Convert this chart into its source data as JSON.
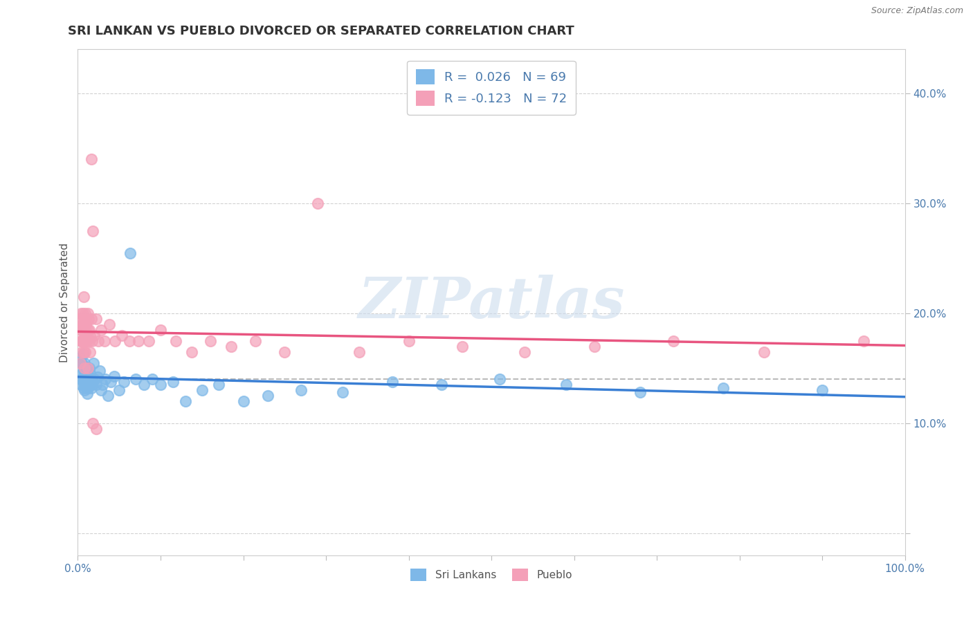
{
  "title": "SRI LANKAN VS PUEBLO DIVORCED OR SEPARATED CORRELATION CHART",
  "source_text": "Source: ZipAtlas.com",
  "ylabel": "Divorced or Separated",
  "xlim": [
    0.0,
    1.0
  ],
  "ylim": [
    -0.02,
    0.44
  ],
  "xticks": [
    0.0,
    0.1,
    0.2,
    0.3,
    0.4,
    0.5,
    0.6,
    0.7,
    0.8,
    0.9,
    1.0
  ],
  "yticks": [
    0.0,
    0.1,
    0.2,
    0.3,
    0.4
  ],
  "sri_color": "#7eb8e8",
  "pueblo_color": "#f4a0b8",
  "trend_sri_color": "#3a7fd4",
  "trend_pueblo_color": "#e85580",
  "background_color": "#ffffff",
  "grid_color": "#cccccc",
  "watermark_text": "ZIPatlas",
  "title_fontsize": 13,
  "axis_label_fontsize": 11,
  "tick_fontsize": 11,
  "legend_fontsize": 13,
  "sri_lankans_x": [
    0.004,
    0.005,
    0.005,
    0.006,
    0.006,
    0.007,
    0.007,
    0.008,
    0.008,
    0.009,
    0.009,
    0.01,
    0.01,
    0.011,
    0.011,
    0.012,
    0.012,
    0.013,
    0.013,
    0.014,
    0.014,
    0.015,
    0.015,
    0.016,
    0.016,
    0.017,
    0.018,
    0.019,
    0.02,
    0.022,
    0.024,
    0.026,
    0.028,
    0.03,
    0.033,
    0.036,
    0.04,
    0.044,
    0.05,
    0.056,
    0.063,
    0.07,
    0.08,
    0.09,
    0.1,
    0.115,
    0.13,
    0.15,
    0.17,
    0.2,
    0.23,
    0.27,
    0.32,
    0.38,
    0.44,
    0.51,
    0.59,
    0.68,
    0.78,
    0.9,
    0.003,
    0.004,
    0.005,
    0.006,
    0.007,
    0.008,
    0.009,
    0.01,
    0.012
  ],
  "sri_lankans_y": [
    0.135,
    0.14,
    0.145,
    0.138,
    0.142,
    0.132,
    0.148,
    0.13,
    0.155,
    0.143,
    0.138,
    0.133,
    0.148,
    0.145,
    0.127,
    0.14,
    0.135,
    0.143,
    0.137,
    0.142,
    0.15,
    0.136,
    0.145,
    0.14,
    0.132,
    0.135,
    0.138,
    0.155,
    0.14,
    0.135,
    0.142,
    0.148,
    0.13,
    0.135,
    0.14,
    0.125,
    0.138,
    0.143,
    0.13,
    0.138,
    0.255,
    0.14,
    0.135,
    0.14,
    0.135,
    0.138,
    0.12,
    0.13,
    0.135,
    0.12,
    0.125,
    0.13,
    0.128,
    0.138,
    0.135,
    0.14,
    0.135,
    0.128,
    0.132,
    0.13,
    0.16,
    0.155,
    0.155,
    0.163,
    0.152,
    0.148,
    0.142,
    0.138,
    0.132
  ],
  "pueblo_x": [
    0.002,
    0.003,
    0.004,
    0.005,
    0.005,
    0.006,
    0.006,
    0.007,
    0.007,
    0.008,
    0.008,
    0.009,
    0.009,
    0.01,
    0.01,
    0.011,
    0.012,
    0.013,
    0.014,
    0.015,
    0.016,
    0.017,
    0.018,
    0.02,
    0.022,
    0.025,
    0.028,
    0.032,
    0.038,
    0.045,
    0.053,
    0.062,
    0.073,
    0.086,
    0.1,
    0.118,
    0.138,
    0.16,
    0.185,
    0.215,
    0.25,
    0.29,
    0.34,
    0.4,
    0.465,
    0.54,
    0.625,
    0.72,
    0.83,
    0.95,
    0.004,
    0.005,
    0.006,
    0.007,
    0.008,
    0.009,
    0.01,
    0.012,
    0.014,
    0.016,
    0.003,
    0.004,
    0.005,
    0.006,
    0.007,
    0.008,
    0.009,
    0.01,
    0.012,
    0.015,
    0.018,
    0.022
  ],
  "pueblo_y": [
    0.195,
    0.185,
    0.175,
    0.195,
    0.175,
    0.19,
    0.2,
    0.175,
    0.185,
    0.19,
    0.175,
    0.2,
    0.175,
    0.185,
    0.19,
    0.175,
    0.185,
    0.195,
    0.175,
    0.18,
    0.34,
    0.175,
    0.275,
    0.18,
    0.195,
    0.175,
    0.185,
    0.175,
    0.19,
    0.175,
    0.18,
    0.175,
    0.175,
    0.175,
    0.185,
    0.175,
    0.165,
    0.175,
    0.17,
    0.175,
    0.165,
    0.3,
    0.165,
    0.175,
    0.17,
    0.165,
    0.17,
    0.175,
    0.165,
    0.175,
    0.2,
    0.185,
    0.19,
    0.215,
    0.195,
    0.185,
    0.19,
    0.2,
    0.185,
    0.195,
    0.155,
    0.175,
    0.165,
    0.175,
    0.165,
    0.15,
    0.165,
    0.175,
    0.15,
    0.165,
    0.1,
    0.095
  ]
}
